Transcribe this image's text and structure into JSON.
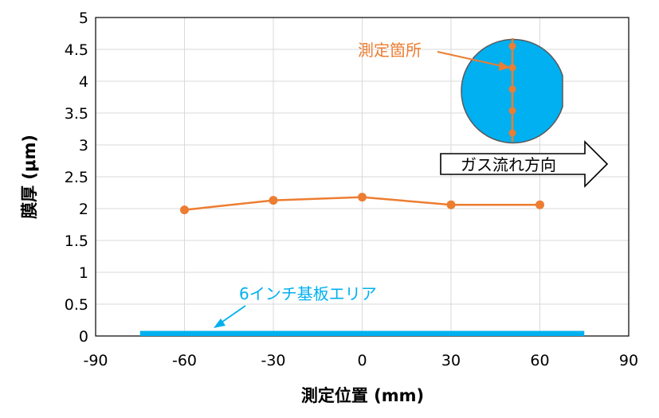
{
  "chart_data": {
    "type": "line",
    "title": "",
    "xlabel": "測定位置 (mm)",
    "ylabel": "膜厚 (μm)",
    "xlim": [
      -90,
      90
    ],
    "ylim": [
      0,
      5
    ],
    "xticks": [
      "-90",
      "-60",
      "-30",
      "0",
      "30",
      "60",
      "90"
    ],
    "yticks": [
      "0",
      "0.5",
      "1",
      "1.5",
      "2",
      "2.5",
      "3",
      "3.5",
      "4",
      "4.5",
      "5"
    ],
    "grid": true,
    "x": [
      -60,
      -30,
      0,
      30,
      60
    ],
    "series": [
      {
        "values": [
          1.98,
          2.13,
          2.18,
          2.06,
          2.06
        ],
        "color": "#ED7D31"
      }
    ],
    "substrate": {
      "x": [
        -75,
        75
      ],
      "thickness": 0.08,
      "color": "#00B0F0"
    },
    "annotations": {
      "measurement_points_label": "測定箇所",
      "substrate_label": "6インチ基板エリア",
      "gas_flow_label": "ガス流れ方向"
    }
  },
  "colors": {
    "series": "#ED7D31",
    "substrate": "#00B0F0",
    "grid": "#D9D9D9",
    "axis": "#000000"
  }
}
